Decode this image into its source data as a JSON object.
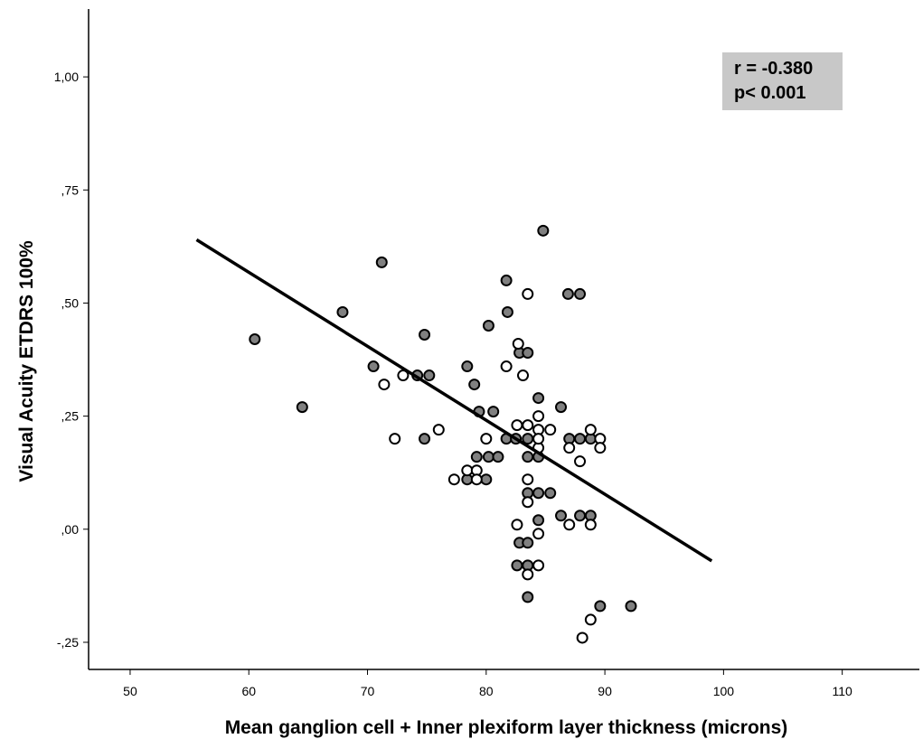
{
  "chart_data": {
    "type": "scatter",
    "title": "",
    "xlabel": "Mean ganglion cell + Inner plexiform layer thickness (microns)",
    "ylabel": "Visual Acuity ETDRS 100%",
    "xlim": [
      46.5,
      116.5
    ],
    "ylim": [
      -0.31,
      1.15
    ],
    "x_ticks": [
      50,
      60,
      70,
      80,
      90,
      100,
      110
    ],
    "x_tick_labels": [
      "50",
      "60",
      "70",
      "80",
      "90",
      "100",
      "110"
    ],
    "y_ticks": [
      -0.25,
      0.0,
      0.25,
      0.5,
      0.75,
      1.0
    ],
    "y_tick_labels": [
      "-,25",
      ",00",
      ",25",
      ",50",
      ",75",
      "1,00"
    ],
    "grid": false,
    "legend": "none",
    "annotation": {
      "line1": "r = -0.380",
      "line2": "p< 0.001",
      "placement": "top-right"
    },
    "regression_line": {
      "x": [
        55.6,
        99.0
      ],
      "y": [
        0.64,
        -0.07
      ]
    },
    "colors": {
      "filled_marker": "#808080",
      "open_marker": "#ffffff",
      "marker_edge": "#000000",
      "line": "#000000",
      "annotation_bg": "#c8c8c8"
    },
    "series": [
      {
        "marker": "filled",
        "points": [
          [
            60.5,
            0.42
          ],
          [
            64.5,
            0.27
          ],
          [
            67.9,
            0.48
          ],
          [
            70.5,
            0.36
          ],
          [
            71.2,
            0.59
          ],
          [
            74.2,
            0.34
          ],
          [
            74.8,
            0.43
          ],
          [
            75.2,
            0.34
          ],
          [
            74.8,
            0.2
          ],
          [
            78.4,
            0.36
          ],
          [
            78.4,
            0.11
          ],
          [
            79.0,
            0.32
          ],
          [
            79.2,
            0.16
          ],
          [
            79.4,
            0.26
          ],
          [
            80.2,
            0.45
          ],
          [
            80.2,
            0.16
          ],
          [
            80.0,
            0.11
          ],
          [
            80.6,
            0.26
          ],
          [
            81.0,
            0.16
          ],
          [
            81.7,
            0.55
          ],
          [
            81.8,
            0.48
          ],
          [
            81.7,
            0.2
          ],
          [
            82.5,
            0.2
          ],
          [
            82.8,
            0.39
          ],
          [
            83.5,
            0.39
          ],
          [
            84.4,
            0.29
          ],
          [
            84.8,
            0.66
          ],
          [
            83.5,
            0.2
          ],
          [
            83.5,
            0.16
          ],
          [
            84.4,
            0.16
          ],
          [
            83.5,
            0.08
          ],
          [
            84.4,
            0.08
          ],
          [
            85.4,
            0.08
          ],
          [
            86.3,
            0.27
          ],
          [
            86.3,
            0.03
          ],
          [
            86.9,
            0.52
          ],
          [
            87.9,
            0.52
          ],
          [
            87.0,
            0.2
          ],
          [
            87.9,
            0.2
          ],
          [
            88.8,
            0.2
          ],
          [
            87.9,
            0.03
          ],
          [
            88.8,
            0.03
          ],
          [
            84.4,
            0.02
          ],
          [
            82.8,
            -0.03
          ],
          [
            83.5,
            -0.03
          ],
          [
            82.6,
            -0.08
          ],
          [
            83.5,
            -0.08
          ],
          [
            83.5,
            -0.15
          ],
          [
            89.6,
            -0.17
          ],
          [
            92.2,
            -0.17
          ]
        ]
      },
      {
        "marker": "open",
        "points": [
          [
            71.4,
            0.32
          ],
          [
            72.3,
            0.2
          ],
          [
            73.0,
            0.34
          ],
          [
            76.0,
            0.22
          ],
          [
            77.3,
            0.11
          ],
          [
            78.4,
            0.13
          ],
          [
            79.2,
            0.13
          ],
          [
            79.2,
            0.11
          ],
          [
            80.0,
            0.2
          ],
          [
            81.7,
            0.36
          ],
          [
            82.7,
            0.41
          ],
          [
            83.1,
            0.34
          ],
          [
            83.5,
            0.52
          ],
          [
            82.6,
            0.23
          ],
          [
            83.5,
            0.23
          ],
          [
            84.4,
            0.25
          ],
          [
            84.4,
            0.22
          ],
          [
            85.4,
            0.22
          ],
          [
            84.4,
            0.18
          ],
          [
            84.4,
            0.2
          ],
          [
            83.5,
            0.11
          ],
          [
            83.5,
            0.06
          ],
          [
            87.0,
            0.18
          ],
          [
            87.9,
            0.15
          ],
          [
            88.8,
            0.22
          ],
          [
            89.6,
            0.2
          ],
          [
            89.6,
            0.18
          ],
          [
            82.6,
            0.01
          ],
          [
            87.0,
            0.01
          ],
          [
            88.8,
            0.01
          ],
          [
            84.4,
            -0.01
          ],
          [
            84.4,
            -0.08
          ],
          [
            83.5,
            -0.1
          ],
          [
            88.8,
            -0.2
          ],
          [
            88.1,
            -0.24
          ]
        ]
      }
    ]
  }
}
